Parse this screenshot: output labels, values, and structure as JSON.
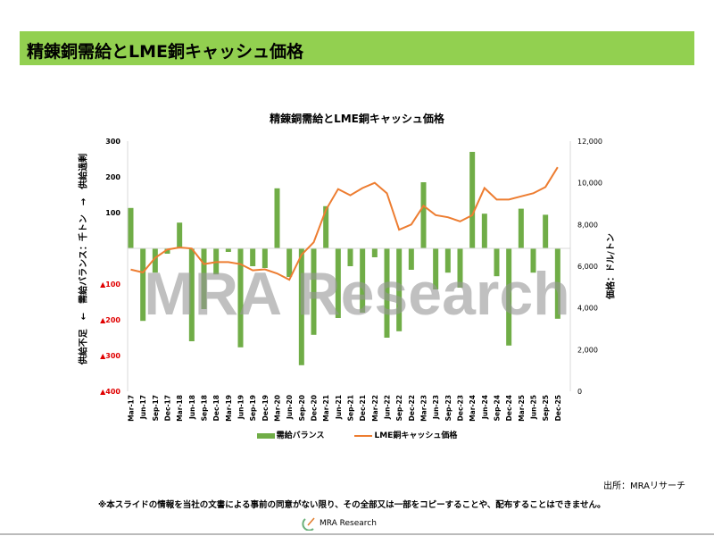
{
  "header": {
    "title": "精錬銅需給とLME銅キャッシュ価格"
  },
  "watermark": "MRA Research",
  "source": "出所：MRAリサーチ",
  "disclaimer": "※本スライドの情報を当社の文書による事前の同意がない限り、その全部又は一部をコピーすることや、配布することはできません。",
  "footer": {
    "logo_text": "MRA Research"
  },
  "colors": {
    "bar": "#70AD47",
    "line": "#ED7D31",
    "header": "#92D050",
    "negative_tick": "#E00000"
  },
  "chart_data": {
    "type": "bar+line",
    "title": "精錬銅需給とLME銅キャッシュ価格",
    "ylabel_left": "供給不足　←　需給バランス：千トン　→　供給過剰",
    "ylabel_right": "価格：ドル/トン",
    "ylim_left": [
      -400,
      300
    ],
    "ylim_right": [
      0,
      12000
    ],
    "yticks_left": [
      "300",
      "200",
      "100",
      "",
      "▲100",
      "▲200",
      "▲300",
      "▲400"
    ],
    "yticks_left_values": [
      300,
      200,
      100,
      0,
      -100,
      -200,
      -300,
      -400
    ],
    "yticks_right": [
      "12,000",
      "10,000",
      "8,000",
      "6,000",
      "4,000",
      "2,000",
      "0"
    ],
    "yticks_right_values": [
      12000,
      10000,
      8000,
      6000,
      4000,
      2000,
      0
    ],
    "categories": [
      "Mar-17",
      "Jun-17",
      "Sep-17",
      "Dec-17",
      "Mar-18",
      "Jun-18",
      "Sep-18",
      "Dec-18",
      "Mar-19",
      "Jun-19",
      "Sep-19",
      "Dec-19",
      "Mar-20",
      "Jun-20",
      "Sep-20",
      "Dec-20",
      "Mar-21",
      "Jun-21",
      "Sep-21",
      "Dec-21",
      "Mar-22",
      "Jun-22",
      "Sep-22",
      "Dec-22",
      "Mar-23",
      "Jun-23",
      "Sep-23",
      "Dec-23",
      "Mar-24",
      "Jun-24",
      "Sep-24",
      "Dec-24",
      "Mar-25",
      "Jun-25",
      "Sep-25",
      "Dec-25"
    ],
    "series": [
      {
        "name": "需給バランス",
        "type": "bar",
        "axis": "left",
        "values": [
          113,
          -203,
          -68,
          -15,
          72,
          -260,
          -170,
          -73,
          -10,
          -277,
          -50,
          -55,
          168,
          -80,
          -327,
          -242,
          118,
          -195,
          -50,
          -180,
          -25,
          -250,
          -232,
          -60,
          185,
          -115,
          -68,
          -110,
          270,
          97,
          -78,
          -272,
          111,
          -68,
          94,
          -197
        ]
      },
      {
        "name": "LME銅キャッシュ価格",
        "type": "line",
        "axis": "right",
        "values": [
          5840,
          5700,
          6400,
          6800,
          6900,
          6850,
          6100,
          6200,
          6200,
          6100,
          5800,
          5850,
          5650,
          5350,
          6550,
          7150,
          8700,
          9700,
          9400,
          9750,
          10000,
          9500,
          7750,
          8000,
          8900,
          8450,
          8350,
          8150,
          8450,
          9750,
          9200,
          9200,
          9350,
          9500,
          9800,
          10750
        ]
      }
    ],
    "legend": [
      "需給バランス",
      "LME銅キャッシュ価格"
    ],
    "legend_position": "bottom",
    "grid": false
  }
}
